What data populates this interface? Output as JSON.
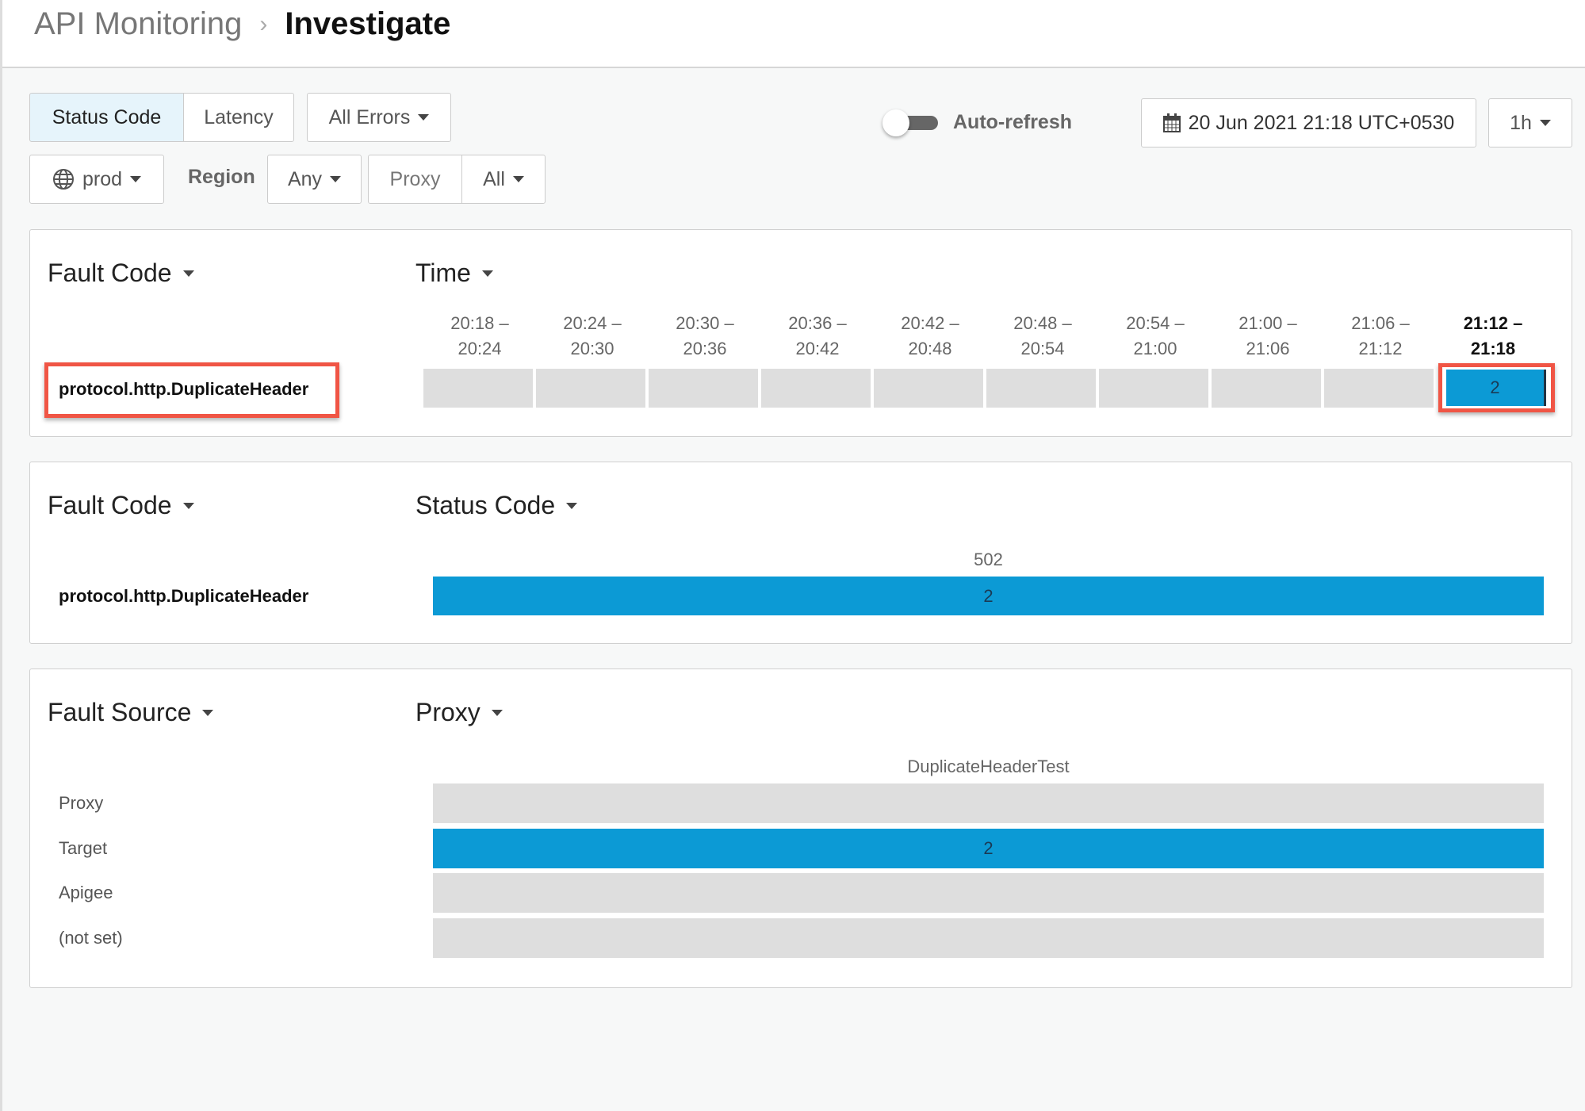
{
  "breadcrumb": {
    "parent": "API Monitoring",
    "current": "Investigate"
  },
  "toolbar": {
    "metric_tabs": [
      "Status Code",
      "Latency"
    ],
    "active_tab": "Status Code",
    "errors_select": "All Errors",
    "env_select": "prod",
    "region_label": "Region",
    "region_select": "Any",
    "proxy_label": "Proxy",
    "proxy_select": "All",
    "auto_refresh_label": "Auto-refresh",
    "auto_refresh_on": false,
    "date": "20 Jun 2021 21:18 UTC+0530",
    "range_select": "1h"
  },
  "colors": {
    "bar": "#0c9ad5",
    "empty": "#dedede",
    "highlight": "#f05545"
  },
  "panel1": {
    "row_dim": "Fault Code",
    "col_dim": "Time",
    "columns": [
      [
        "20:18 –",
        "20:24"
      ],
      [
        "20:24 –",
        "20:30"
      ],
      [
        "20:30 –",
        "20:36"
      ],
      [
        "20:36 –",
        "20:42"
      ],
      [
        "20:42 –",
        "20:48"
      ],
      [
        "20:48 –",
        "20:54"
      ],
      [
        "20:54 –",
        "21:00"
      ],
      [
        "21:00 –",
        "21:06"
      ],
      [
        "21:06 –",
        "21:12"
      ],
      [
        "21:12 –",
        "21:18"
      ]
    ],
    "row": "protocol.http.DuplicateHeader",
    "values": [
      null,
      null,
      null,
      null,
      null,
      null,
      null,
      null,
      null,
      "2"
    ]
  },
  "panel2": {
    "row_dim": "Fault Code",
    "col_dim": "Status Code",
    "column": "502",
    "row": "protocol.http.DuplicateHeader",
    "value": "2"
  },
  "panel3": {
    "row_dim": "Fault Source",
    "col_dim": "Proxy",
    "column": "DuplicateHeaderTest",
    "rows": [
      {
        "label": "Proxy",
        "value": null
      },
      {
        "label": "Target",
        "value": "2"
      },
      {
        "label": "Apigee",
        "value": null
      },
      {
        "label": "(not set)",
        "value": null
      }
    ]
  }
}
